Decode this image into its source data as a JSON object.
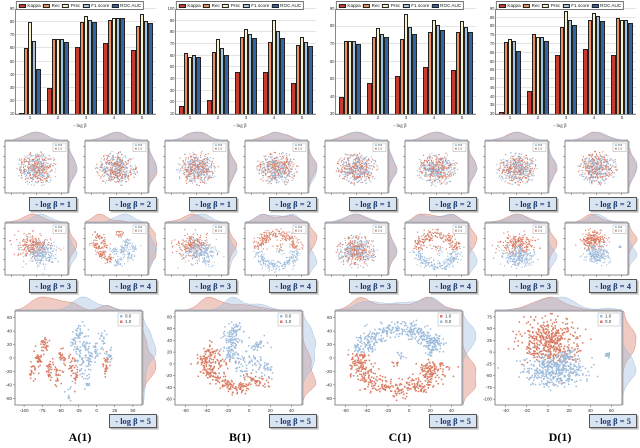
{
  "colors": {
    "bar_series": [
      "#c63d2f",
      "#ee8f5f",
      "#f7f2cb",
      "#a6c4dd",
      "#3166a8"
    ],
    "scatter_red": "#d97b62",
    "scatter_blue": "#9dbbdb",
    "density_red": "rgba(215,124,104,0.40)",
    "density_blue": "rgba(157,187,219,0.40)",
    "beta_box_bg": "#d9e4f1",
    "beta_box_text": "#17356e"
  },
  "chart_data": [
    {
      "type": "bar",
      "id": "A",
      "title": "",
      "xlabel": "- log β",
      "ylabel": "",
      "categories": [
        "1",
        "2",
        "3",
        "4",
        "5"
      ],
      "ylim": [
        10,
        90
      ],
      "yticks": [
        10,
        20,
        30,
        40,
        50,
        60,
        70,
        80,
        90
      ],
      "legend": [
        "Kappa",
        "Rec",
        "Prec",
        "F1 score",
        "ROC AUC"
      ],
      "series": [
        {
          "name": "Kappa",
          "values": [
            11,
            30,
            61,
            64,
            59
          ]
        },
        {
          "name": "Rec",
          "values": [
            60,
            67,
            80,
            82,
            77
          ]
        },
        {
          "name": "Prec",
          "values": [
            80,
            67,
            85,
            83,
            86
          ]
        },
        {
          "name": "F1 score",
          "values": [
            66,
            67,
            82,
            83,
            81
          ]
        },
        {
          "name": "ROC AUC",
          "values": [
            44,
            65,
            80,
            83,
            79
          ]
        }
      ]
    },
    {
      "type": "bar",
      "id": "B",
      "title": "",
      "xlabel": "- log β",
      "ylabel": "",
      "categories": [
        "1",
        "2",
        "3",
        "4",
        "5"
      ],
      "ylim": [
        10,
        100
      ],
      "yticks": [
        10,
        20,
        30,
        40,
        50,
        60,
        70,
        80,
        90,
        100
      ],
      "legend": [
        "Kappa",
        "Rec",
        "Prec",
        "F1 score",
        "ROC AUC"
      ],
      "series": [
        {
          "name": "Kappa",
          "values": [
            17,
            22,
            46,
            46,
            37
          ]
        },
        {
          "name": "Rec",
          "values": [
            62,
            63,
            76,
            72,
            69
          ]
        },
        {
          "name": "Prec",
          "values": [
            59,
            74,
            83,
            91,
            76
          ]
        },
        {
          "name": "F1 score",
          "values": [
            61,
            67,
            79,
            81,
            72
          ]
        },
        {
          "name": "ROC AUC",
          "values": [
            59,
            61,
            75,
            75,
            68
          ]
        }
      ]
    },
    {
      "type": "bar",
      "id": "C",
      "title": "",
      "xlabel": "- log β",
      "ylabel": "",
      "categories": [
        "1",
        "2",
        "3",
        "4",
        "5"
      ],
      "ylim": [
        30,
        90
      ],
      "yticks": [
        30,
        40,
        50,
        60,
        70,
        80,
        90
      ],
      "legend": [
        "Kappa",
        "Rec",
        "Prec",
        "F1 score",
        "ROC AUC"
      ],
      "series": [
        {
          "name": "Kappa",
          "values": [
            40,
            48,
            52,
            57,
            55
          ]
        },
        {
          "name": "Rec",
          "values": [
            72,
            74,
            73,
            77,
            77
          ]
        },
        {
          "name": "Prec",
          "values": [
            72,
            79,
            87,
            84,
            83
          ]
        },
        {
          "name": "F1 score",
          "values": [
            72,
            76,
            80,
            81,
            80
          ]
        },
        {
          "name": "ROC AUC",
          "values": [
            70,
            74,
            76,
            78,
            77
          ]
        }
      ]
    },
    {
      "type": "bar",
      "id": "D",
      "title": "",
      "xlabel": "- log β",
      "ylabel": "",
      "categories": [
        "1",
        "2",
        "3",
        "4",
        "5"
      ],
      "ylim": [
        30,
        90
      ],
      "yticks": [
        30,
        35,
        40,
        45,
        50,
        55,
        60,
        65,
        70,
        75,
        80,
        85,
        90
      ],
      "legend": [
        "Kappa",
        "Rec",
        "Prec",
        "F1 score",
        "ROC AUC"
      ],
      "series": [
        {
          "name": "Kappa",
          "values": [
            31,
            43,
            64,
            67,
            64
          ]
        },
        {
          "name": "Rec",
          "values": [
            71,
            76,
            80,
            84,
            85
          ]
        },
        {
          "name": "Prec",
          "values": [
            73,
            74,
            89,
            88,
            84
          ]
        },
        {
          "name": "F1 score",
          "values": [
            72,
            74,
            84,
            86,
            84
          ]
        },
        {
          "name": "ROC AUC",
          "values": [
            66,
            72,
            81,
            83,
            82
          ]
        }
      ]
    }
  ],
  "scatter_columns": [
    {
      "caption": "A(1)",
      "panels": [
        {
          "label": "- log β  = 1",
          "pattern": "mixed",
          "legend": [
            {
              "c": "blue",
              "t": "0.0"
            },
            {
              "c": "red",
              "t": "1.0"
            }
          ]
        },
        {
          "label": "- log β  = 2",
          "pattern": "mixed",
          "legend": [
            {
              "c": "blue",
              "t": "0.0"
            },
            {
              "c": "red",
              "t": "1.0"
            }
          ]
        },
        {
          "label": "- log β  = 3",
          "pattern": "partial",
          "legend": [
            {
              "c": "blue",
              "t": "0.0"
            },
            {
              "c": "red",
              "t": "1.0"
            }
          ]
        },
        {
          "label": "- log β  = 4",
          "pattern": "clustersA4",
          "legend": [
            {
              "c": "blue",
              "t": "0.0"
            },
            {
              "c": "red",
              "t": "1.0"
            }
          ]
        },
        {
          "label": "- log β  = 5",
          "pattern": "bigA",
          "legend": [
            {
              "c": "blue",
              "t": "0.0"
            },
            {
              "c": "red",
              "t": "1.0"
            }
          ],
          "xticks": [
            "-100",
            "-75",
            "-50",
            "-25",
            "0",
            "25",
            "50"
          ],
          "yticks": [
            "60",
            "40",
            "20",
            "0",
            "-20",
            "-40",
            "-60"
          ]
        }
      ]
    },
    {
      "caption": "B(1)",
      "panels": [
        {
          "label": "- log β  = 1",
          "pattern": "mixed",
          "legend": [
            {
              "c": "blue",
              "t": "0.0"
            },
            {
              "c": "red",
              "t": "1.0"
            }
          ]
        },
        {
          "label": "- log β  = 2",
          "pattern": "mixed",
          "legend": [
            {
              "c": "blue",
              "t": "0.0"
            },
            {
              "c": "red",
              "t": "1.0"
            }
          ]
        },
        {
          "label": "- log β  = 3",
          "pattern": "partial",
          "legend": [
            {
              "c": "blue",
              "t": "0.0"
            },
            {
              "c": "red",
              "t": "1.0"
            }
          ]
        },
        {
          "label": "- log β  = 4",
          "pattern": "ringSmall",
          "legend": [
            {
              "c": "blue",
              "t": "0.0"
            },
            {
              "c": "red",
              "t": "1.0"
            }
          ]
        },
        {
          "label": "- log β  = 5",
          "pattern": "bigB",
          "legend": [
            {
              "c": "blue",
              "t": "0.0"
            },
            {
              "c": "red",
              "t": "1.0"
            }
          ],
          "xticks": [
            "-60",
            "-40",
            "-20",
            "0",
            "20",
            "40"
          ],
          "yticks": [
            "80",
            "60",
            "40",
            "20",
            "0",
            "-20",
            "-40",
            "-60"
          ]
        }
      ]
    },
    {
      "caption": "C(1)",
      "panels": [
        {
          "label": "- log β  = 1",
          "pattern": "mixed",
          "legend": [
            {
              "c": "blue",
              "t": "0.0"
            },
            {
              "c": "red",
              "t": "1.0"
            }
          ]
        },
        {
          "label": "- log β  = 2",
          "pattern": "mixed",
          "legend": [
            {
              "c": "blue",
              "t": "0.0"
            },
            {
              "c": "red",
              "t": "1.0"
            }
          ]
        },
        {
          "label": "- log β  = 3",
          "pattern": "mixed",
          "legend": [
            {
              "c": "blue",
              "t": "0.0"
            },
            {
              "c": "red",
              "t": "1.0"
            }
          ]
        },
        {
          "label": "- log β  = 4",
          "pattern": "ringSmall",
          "legend": [
            {
              "c": "blue",
              "t": "0.0"
            },
            {
              "c": "red",
              "t": "1.0"
            }
          ]
        },
        {
          "label": "- log β  = 5",
          "pattern": "bigC",
          "legend": [
            {
              "c": "red",
              "t": "1.0"
            },
            {
              "c": "blue",
              "t": "0.0"
            }
          ],
          "xticks": [
            "-60",
            "-40",
            "-20",
            "0",
            "20",
            "40"
          ],
          "yticks": [
            "60",
            "40",
            "20",
            "0",
            "-20",
            "-40",
            "-60"
          ]
        }
      ]
    },
    {
      "caption": "D(1)",
      "panels": [
        {
          "label": "- log β  = 1",
          "pattern": "mixed",
          "legend": [
            {
              "c": "blue",
              "t": "0.0"
            },
            {
              "c": "red",
              "t": "1.0"
            }
          ]
        },
        {
          "label": "- log β  = 2",
          "pattern": "mixed",
          "legend": [
            {
              "c": "blue",
              "t": "0.0"
            },
            {
              "c": "red",
              "t": "1.0"
            }
          ]
        },
        {
          "label": "- log β  = 3",
          "pattern": "partialD",
          "legend": [
            {
              "c": "blue",
              "t": "0.0"
            },
            {
              "c": "red",
              "t": "1.0"
            }
          ]
        },
        {
          "label": "- log β  = 4",
          "pattern": "twoblobD4",
          "legend": [
            {
              "c": "blue",
              "t": "0.0"
            },
            {
              "c": "red",
              "t": "1.0"
            }
          ]
        },
        {
          "label": "- log β  = 5",
          "pattern": "bigD",
          "legend": [
            {
              "c": "blue",
              "t": "1.0"
            },
            {
              "c": "red",
              "t": "0.0"
            }
          ],
          "xticks": [
            "-40",
            "-20",
            "0",
            "20",
            "40",
            "60"
          ],
          "yticks": [
            "75",
            "50",
            "25",
            "0",
            "-25",
            "-50",
            "-75",
            "-100"
          ]
        }
      ]
    }
  ]
}
